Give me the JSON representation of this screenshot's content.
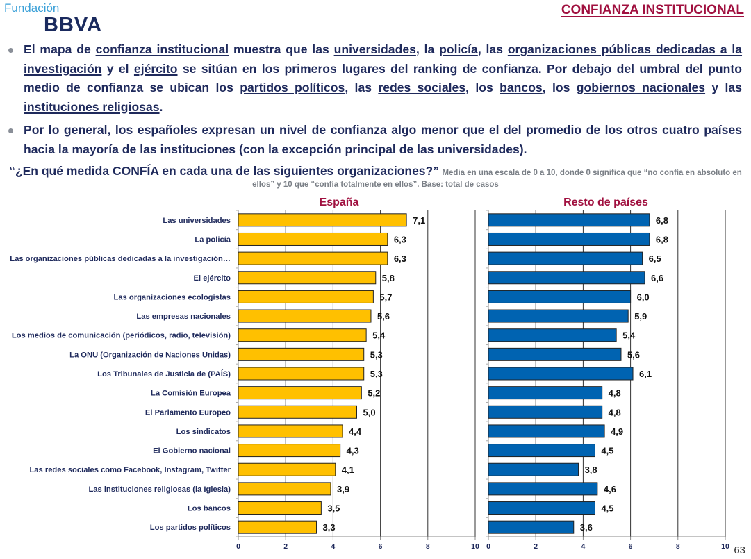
{
  "header": {
    "logo_top": "Fundación",
    "logo_bottom": "BBVA",
    "section_title": "CONFIANZA INSTITUCIONAL"
  },
  "bullets": [
    {
      "segments": [
        {
          "text": "El mapa de ",
          "u": false
        },
        {
          "text": "confianza institucional",
          "u": true
        },
        {
          "text": " muestra que las ",
          "u": false
        },
        {
          "text": "universidades",
          "u": true
        },
        {
          "text": ", la ",
          "u": false
        },
        {
          "text": "policía",
          "u": true
        },
        {
          "text": ", las ",
          "u": false
        },
        {
          "text": "organizaciones públicas dedicadas a la investigación",
          "u": true
        },
        {
          "text": " y el ",
          "u": false
        },
        {
          "text": "ejército",
          "u": true
        },
        {
          "text": "  se sitúan en los primeros lugares del ranking de confianza. Por debajo del umbral del punto medio de confianza se ubican los ",
          "u": false
        },
        {
          "text": "partidos políticos",
          "u": true
        },
        {
          "text": ", las ",
          "u": false
        },
        {
          "text": "redes sociales",
          "u": true
        },
        {
          "text": ", los ",
          "u": false
        },
        {
          "text": "bancos",
          "u": true
        },
        {
          "text": ", los ",
          "u": false
        },
        {
          "text": "gobiernos nacionales",
          "u": true
        },
        {
          "text": " y las ",
          "u": false
        },
        {
          "text": "instituciones religiosas",
          "u": true
        },
        {
          "text": ".",
          "u": false
        }
      ]
    },
    {
      "segments": [
        {
          "text": "Por lo general, los españoles expresan un nivel de confianza algo menor que el del promedio de los otros cuatro países hacia la mayoría de las instituciones (con la excepción principal de las universidades).",
          "u": false
        }
      ]
    }
  ],
  "question": {
    "main": "“¿En qué medida CONFÍA en cada una de las siguientes organizaciones?”",
    "note": "Media en una escala de 0 a 10, donde 0 significa que “no confía en absoluto en ellos” y 10 que “confía totalmente en ellos”. Base: total de casos"
  },
  "page_number": "63",
  "colors": {
    "espana_bar": "#ffc000",
    "resto_bar": "#0063b1",
    "title_red": "#a0103f",
    "text_navy": "#1f2a5c"
  },
  "chart_data": [
    {
      "type": "bar",
      "orientation": "horizontal",
      "title": "España",
      "xlim": [
        0,
        10
      ],
      "xticks": [
        "0",
        "2",
        "4",
        "6",
        "8",
        "10"
      ],
      "grid": true,
      "categories": [
        "Las universidades",
        "La policía",
        "Las organizaciones públicas dedicadas a la investigación…",
        "El ejército",
        "Las organizaciones ecologistas",
        "Las empresas nacionales",
        "Los medios de comunicación (periódicos, radio, televisión)",
        "La ONU (Organización de Naciones Unidas)",
        "Los Tribunales de Justicia de (PAÍS)",
        "La Comisión Europea",
        "El Parlamento Europeo",
        "Los sindicatos",
        "El Gobierno nacional",
        "Las redes sociales como Facebook, Instagram, Twitter",
        "Las instituciones religiosas (la Iglesia)",
        "Los bancos",
        "Los partidos políticos"
      ],
      "values": [
        7.1,
        6.3,
        6.3,
        5.8,
        5.7,
        5.6,
        5.4,
        5.3,
        5.3,
        5.2,
        5.0,
        4.4,
        4.3,
        4.1,
        3.9,
        3.5,
        3.3
      ],
      "labels": [
        "7,1",
        "6,3",
        "6,3",
        "5,8",
        "5,7",
        "5,6",
        "5,4",
        "5,3",
        "5,3",
        "5,2",
        "5,0",
        "4,4",
        "4,3",
        "4,1",
        "3,9",
        "3,5",
        "3,3"
      ]
    },
    {
      "type": "bar",
      "orientation": "horizontal",
      "title": "Resto de países",
      "xlim": [
        0,
        10
      ],
      "xticks": [
        "0",
        "2",
        "4",
        "6",
        "8",
        "10"
      ],
      "grid": true,
      "values": [
        6.8,
        6.8,
        6.5,
        6.6,
        6.0,
        5.9,
        5.4,
        5.6,
        6.1,
        4.8,
        4.8,
        4.9,
        4.5,
        3.8,
        4.6,
        4.5,
        3.6
      ],
      "labels": [
        "6,8",
        "6,8",
        "6,5",
        "6,6",
        "6,0",
        "5,9",
        "5,4",
        "5,6",
        "6,1",
        "4,8",
        "4,8",
        "4,9",
        "4,5",
        "3,8",
        "4,6",
        "4,5",
        "3,6"
      ]
    }
  ]
}
